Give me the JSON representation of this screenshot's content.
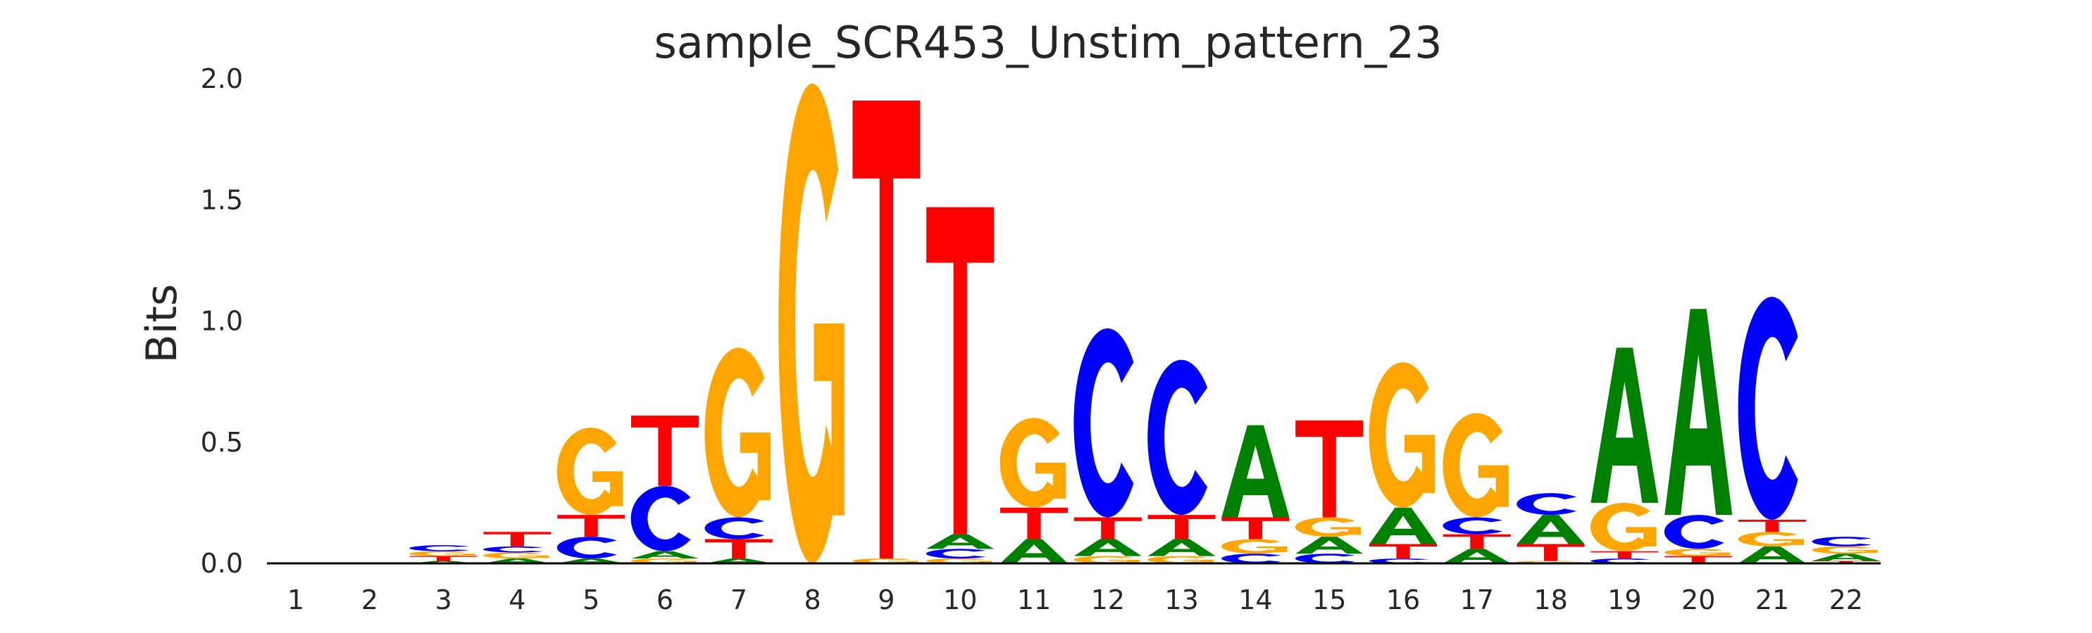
{
  "chart_data": {
    "type": "sequence-logo",
    "title": "sample_SCR453_Unstim_pattern_23",
    "xlabel": "",
    "ylabel": "Bits",
    "ylim": [
      0,
      2.0
    ],
    "yticks": [
      "0.0",
      "0.5",
      "1.0",
      "1.5",
      "2.0"
    ],
    "ytick_values": [
      0,
      0.5,
      1.0,
      1.5,
      2.0
    ],
    "categories": [
      "1",
      "2",
      "3",
      "4",
      "5",
      "6",
      "7",
      "8",
      "9",
      "10",
      "11",
      "12",
      "13",
      "14",
      "15",
      "16",
      "17",
      "18",
      "19",
      "20",
      "21",
      "22"
    ],
    "grid": false,
    "colors": {
      "A": "#008000",
      "C": "#0000ff",
      "G": "#ffa500",
      "T": "#ff0000"
    },
    "positions": [
      [],
      [],
      [
        [
          "A",
          0.01
        ],
        [
          "T",
          0.02
        ],
        [
          "G",
          0.02
        ],
        [
          "C",
          0.025
        ]
      ],
      [
        [
          "A",
          0.02
        ],
        [
          "G",
          0.025
        ],
        [
          "C",
          0.025
        ],
        [
          "T",
          0.06
        ]
      ],
      [
        [
          "A",
          0.02
        ],
        [
          "C",
          0.09
        ],
        [
          "T",
          0.09
        ],
        [
          "G",
          0.36
        ]
      ],
      [
        [
          "G",
          0.02
        ],
        [
          "A",
          0.03
        ],
        [
          "C",
          0.27
        ],
        [
          "T",
          0.29
        ]
      ],
      [
        [
          "A",
          0.02
        ],
        [
          "T",
          0.08
        ],
        [
          "C",
          0.09
        ],
        [
          "G",
          0.7
        ]
      ],
      [
        [
          "G",
          1.98
        ]
      ],
      [
        [
          "G",
          0.02
        ],
        [
          "T",
          1.89
        ]
      ],
      [
        [
          "G",
          0.02
        ],
        [
          "C",
          0.04
        ],
        [
          "A",
          0.06
        ],
        [
          "T",
          1.35
        ]
      ],
      [
        [
          "A",
          0.1
        ],
        [
          "T",
          0.13
        ],
        [
          "G",
          0.37
        ]
      ],
      [
        [
          "G",
          0.03
        ],
        [
          "A",
          0.07
        ],
        [
          "T",
          0.09
        ],
        [
          "C",
          0.78
        ]
      ],
      [
        [
          "G",
          0.03
        ],
        [
          "A",
          0.07
        ],
        [
          "T",
          0.1
        ],
        [
          "C",
          0.64
        ]
      ],
      [
        [
          "C",
          0.04
        ],
        [
          "G",
          0.06
        ],
        [
          "T",
          0.09
        ],
        [
          "A",
          0.38
        ]
      ],
      [
        [
          "C",
          0.04
        ],
        [
          "A",
          0.07
        ],
        [
          "G",
          0.08
        ],
        [
          "T",
          0.4
        ]
      ],
      [
        [
          "C",
          0.02
        ],
        [
          "T",
          0.06
        ],
        [
          "A",
          0.15
        ],
        [
          "G",
          0.6
        ]
      ],
      [
        [
          "A",
          0.06
        ],
        [
          "T",
          0.06
        ],
        [
          "C",
          0.07
        ],
        [
          "G",
          0.43
        ]
      ],
      [
        [
          "G",
          0.01
        ],
        [
          "T",
          0.07
        ],
        [
          "A",
          0.12
        ],
        [
          "C",
          0.09
        ]
      ],
      [
        [
          "C",
          0.02
        ],
        [
          "T",
          0.03
        ],
        [
          "G",
          0.2
        ],
        [
          "A",
          0.64
        ]
      ],
      [
        [
          "T",
          0.03
        ],
        [
          "G",
          0.03
        ],
        [
          "C",
          0.14
        ],
        [
          "A",
          0.85
        ]
      ],
      [
        [
          "A",
          0.07
        ],
        [
          "G",
          0.06
        ],
        [
          "T",
          0.05
        ],
        [
          "C",
          0.92
        ]
      ],
      [
        [
          "T",
          0.01
        ],
        [
          "A",
          0.03
        ],
        [
          "G",
          0.03
        ],
        [
          "C",
          0.04
        ]
      ]
    ]
  }
}
